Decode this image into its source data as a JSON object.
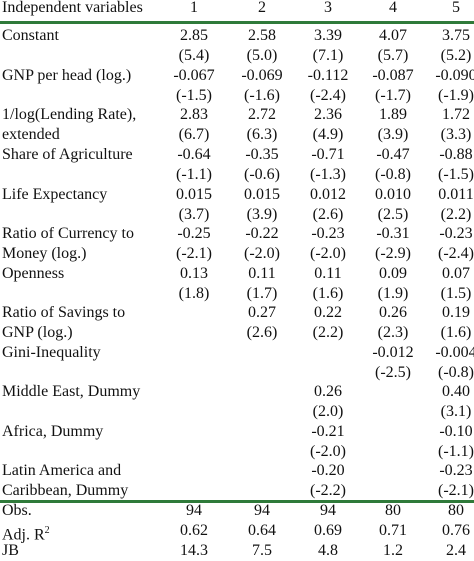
{
  "headers": [
    "Independent variables",
    "1",
    "2",
    "3",
    "4",
    "5"
  ],
  "rows": [
    {
      "label": [
        "Constant"
      ],
      "coef": [
        "2.85",
        "2.58",
        "3.39",
        "4.07",
        "3.75"
      ],
      "t": [
        "(5.4)",
        "(5.0)",
        "(7.1)",
        "(5.7)",
        "(5.2)"
      ]
    },
    {
      "label": [
        "GNP per head (log.)"
      ],
      "coef": [
        "-0.067",
        "-0.069",
        "-0.112",
        "-0.087",
        "-0.090"
      ],
      "t": [
        "(-1.5)",
        "(-1.6)",
        "(-2.4)",
        "(-1.7)",
        "(-1.9)"
      ]
    },
    {
      "label": [
        "1/log(Lending Rate),",
        "extended"
      ],
      "coef": [
        "2.83",
        "2.72",
        "2.36",
        "1.89",
        "1.72"
      ],
      "t": [
        "(6.7)",
        "(6.3)",
        "(4.9)",
        "(3.9)",
        "(3.3)"
      ]
    },
    {
      "label": [
        "Share of Agriculture"
      ],
      "coef": [
        "-0.64",
        "-0.35",
        "-0.71",
        "-0.47",
        "-0.88"
      ],
      "t": [
        "(-1.1)",
        "(-0.6)",
        "(-1.3)",
        "(-0.8)",
        "(-1.5)"
      ]
    },
    {
      "label": [
        "Life Expectancy"
      ],
      "coef": [
        "0.015",
        "0.015",
        "0.012",
        "0.010",
        "0.011"
      ],
      "t": [
        "(3.7)",
        "(3.9)",
        "(2.6)",
        "(2.5)",
        "(2.2)"
      ]
    },
    {
      "label": [
        "Ratio of Currency to",
        "Money (log.)"
      ],
      "coef": [
        "-0.25",
        "-0.22",
        "-0.23",
        "-0.31",
        "-0.23"
      ],
      "t": [
        "(-2.1)",
        "(-2.0)",
        "(-2.0)",
        "(-2.9)",
        "(-2.4)"
      ]
    },
    {
      "label": [
        "Openness"
      ],
      "coef": [
        "0.13",
        "0.11",
        "0.11",
        "0.09",
        "0.07"
      ],
      "t": [
        "(1.8)",
        "(1.7)",
        "(1.6)",
        "(1.9)",
        "(1.5)"
      ]
    },
    {
      "label": [
        "Ratio of Savings to",
        "GNP (log.)"
      ],
      "coef": [
        "",
        "0.27",
        "0.22",
        "0.26",
        "0.19"
      ],
      "t": [
        "",
        "(2.6)",
        "(2.2)",
        "(2.3)",
        "(1.6)"
      ]
    },
    {
      "label": [
        "Gini-Inequality"
      ],
      "coef": [
        "",
        "",
        "",
        "-0.012",
        "-0.004"
      ],
      "t": [
        "",
        "",
        "",
        "(-2.5)",
        "(-0.8)"
      ]
    },
    {
      "label": [
        "Middle East, Dummy"
      ],
      "coef": [
        "",
        "",
        "0.26",
        "",
        "0.40"
      ],
      "t": [
        "",
        "",
        "(2.0)",
        "",
        "(3.1)"
      ]
    },
    {
      "label": [
        "Africa, Dummy"
      ],
      "coef": [
        "",
        "",
        "-0.21",
        "",
        "-0.10"
      ],
      "t": [
        "",
        "",
        "(-2.0)",
        "",
        "(-1.1)"
      ]
    },
    {
      "label": [
        "Latin America and",
        "Caribbean, Dummy"
      ],
      "coef": [
        "",
        "",
        "-0.20",
        "",
        "-0.23"
      ],
      "t": [
        "",
        "",
        "(-2.2)",
        "",
        "(-2.1)"
      ]
    }
  ],
  "stats": [
    {
      "label": "Obs.",
      "sup": "",
      "values": [
        "94",
        "94",
        "94",
        "80",
        "80"
      ]
    },
    {
      "label": "Adj. R",
      "sup": "2",
      "values": [
        "0.62",
        "0.64",
        "0.69",
        "0.71",
        "0.76"
      ]
    },
    {
      "label": "JB",
      "sup": "",
      "values": [
        "14.3",
        "7.5",
        "4.8",
        "1.2",
        "2.4"
      ]
    }
  ]
}
